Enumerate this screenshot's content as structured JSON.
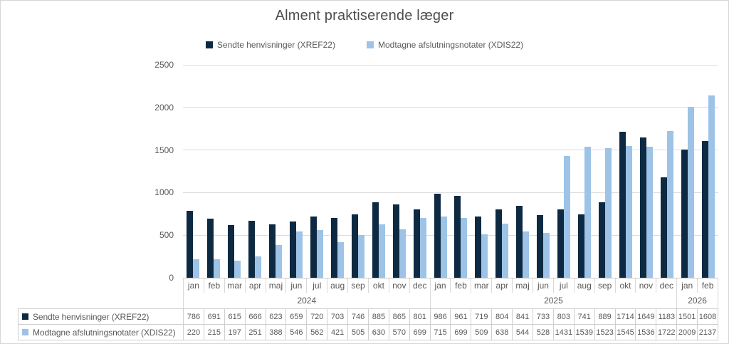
{
  "title": "Alment praktiserende læger",
  "y_axis": {
    "ticks": [
      0,
      500,
      1000,
      1500,
      2000,
      2500
    ]
  },
  "colors": {
    "series1": "#0e2a42",
    "series2": "#9dc3e6",
    "gridline": "#dcdcdc",
    "text": "#595959"
  },
  "chart_data": {
    "type": "bar",
    "title": "Alment praktiserende læger",
    "categories": [
      "jan",
      "feb",
      "mar",
      "apr",
      "maj",
      "jun",
      "jul",
      "aug",
      "sep",
      "okt",
      "nov",
      "dec",
      "jan",
      "feb",
      "mar",
      "apr",
      "maj",
      "jun",
      "jul",
      "aug",
      "sep",
      "okt",
      "nov",
      "dec",
      "jan",
      "feb"
    ],
    "years": [
      {
        "label": "2024",
        "span": 12
      },
      {
        "label": "2025",
        "span": 12
      },
      {
        "label": "2026",
        "span": 2
      }
    ],
    "series": [
      {
        "name": "Sendte henvisninger (XREF22)",
        "color": "#0e2a42",
        "values": [
          786,
          691,
          615,
          666,
          623,
          659,
          720,
          703,
          746,
          885,
          865,
          801,
          986,
          961,
          719,
          804,
          841,
          733,
          803,
          741,
          889,
          1714,
          1649,
          1183,
          1501,
          1608
        ]
      },
      {
        "name": "Modtagne afslutningsnotater (XDIS22)",
        "color": "#9dc3e6",
        "values": [
          220,
          215,
          197,
          251,
          388,
          546,
          562,
          421,
          505,
          630,
          570,
          699,
          715,
          699,
          509,
          638,
          544,
          528,
          1431,
          1539,
          1523,
          1545,
          1536,
          1722,
          2009,
          2137
        ]
      }
    ],
    "ylim": [
      0,
      2500
    ],
    "grid": true,
    "legend_position": "top",
    "data_table_shown": true
  }
}
